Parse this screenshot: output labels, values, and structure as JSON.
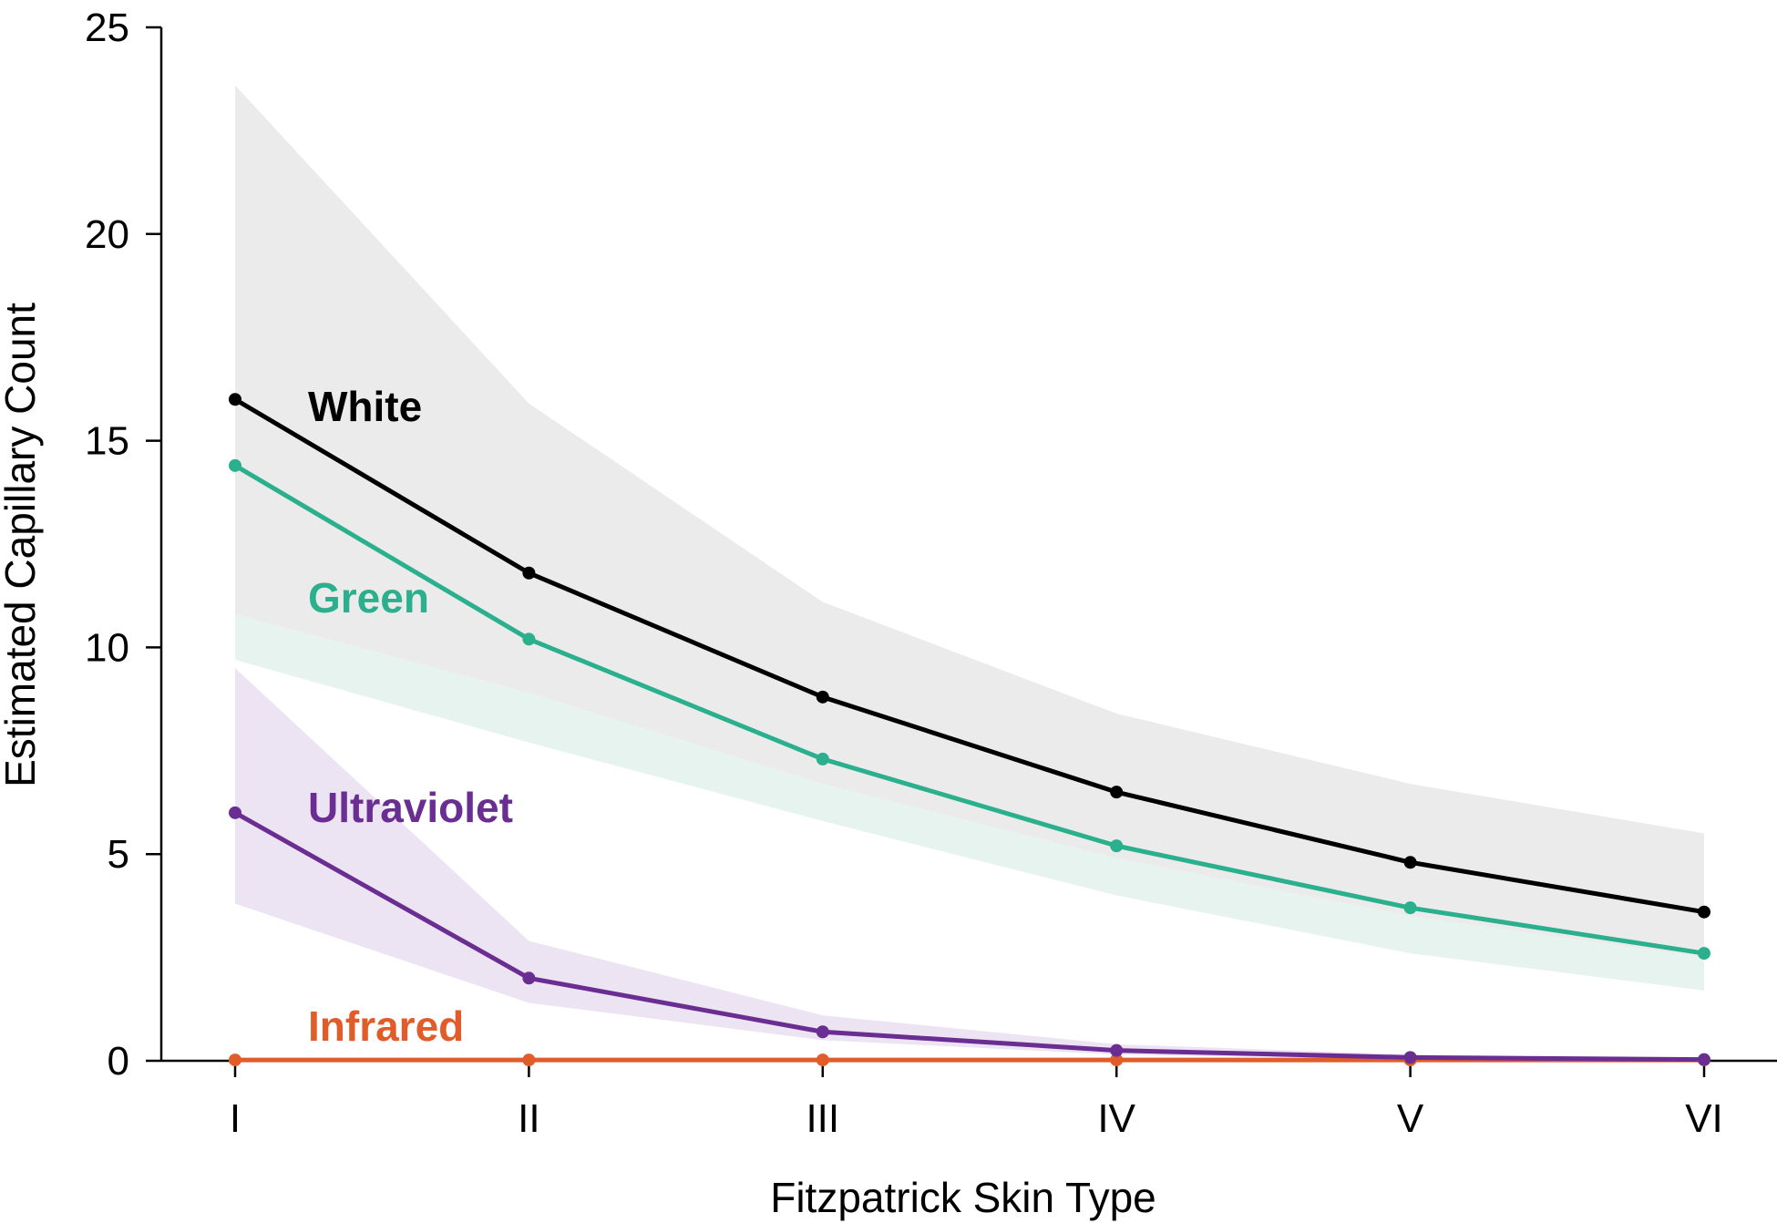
{
  "chart_data": {
    "type": "line",
    "title": "",
    "xlabel": "Fitzpatrick Skin Type",
    "ylabel": "Estimated Capillary Count",
    "categories": [
      "I",
      "II",
      "III",
      "IV",
      "V",
      "VI"
    ],
    "yticks": [
      "0",
      "5",
      "10",
      "15",
      "20",
      "25"
    ],
    "ytick_values": [
      0,
      5,
      10,
      15,
      20,
      25
    ],
    "ylim": [
      0,
      25
    ],
    "grid": false,
    "legend": "inline labels",
    "series": [
      {
        "name": "White",
        "color": "#000000",
        "band_color": "#ebebeb",
        "values": [
          16.0,
          11.8,
          8.8,
          6.5,
          4.8,
          3.6
        ],
        "lower": [
          10.8,
          8.9,
          6.7,
          4.9,
          3.5,
          2.5
        ],
        "upper": [
          23.6,
          15.9,
          11.1,
          8.4,
          6.7,
          5.5
        ]
      },
      {
        "name": "Green",
        "color": "#2bb08d",
        "band_color": "#e6f3ef",
        "values": [
          14.4,
          10.2,
          7.3,
          5.2,
          3.7,
          2.6
        ],
        "lower": [
          9.7,
          7.7,
          5.8,
          4.0,
          2.6,
          1.7
        ],
        "upper": [
          10.8,
          8.9,
          6.7,
          4.9,
          3.5,
          2.5
        ]
      },
      {
        "name": "Ultraviolet",
        "color": "#6a2d92",
        "band_color": "#ede4f3",
        "values": [
          6.0,
          2.0,
          0.7,
          0.25,
          0.08,
          0.03
        ],
        "lower": [
          3.8,
          1.4,
          0.5,
          0.15,
          0.04,
          0.01
        ],
        "upper": [
          9.5,
          2.9,
          1.1,
          0.4,
          0.15,
          0.06
        ]
      },
      {
        "name": "Infrared",
        "color": "#e25c2a",
        "band_color": "#fbe2d8",
        "values": [
          0.02,
          0.02,
          0.02,
          0.02,
          0.02,
          0.02
        ],
        "lower": [
          0,
          0,
          0,
          0,
          0,
          0
        ],
        "upper": [
          0.04,
          0.04,
          0.04,
          0.04,
          0.04,
          0.04
        ]
      }
    ]
  }
}
